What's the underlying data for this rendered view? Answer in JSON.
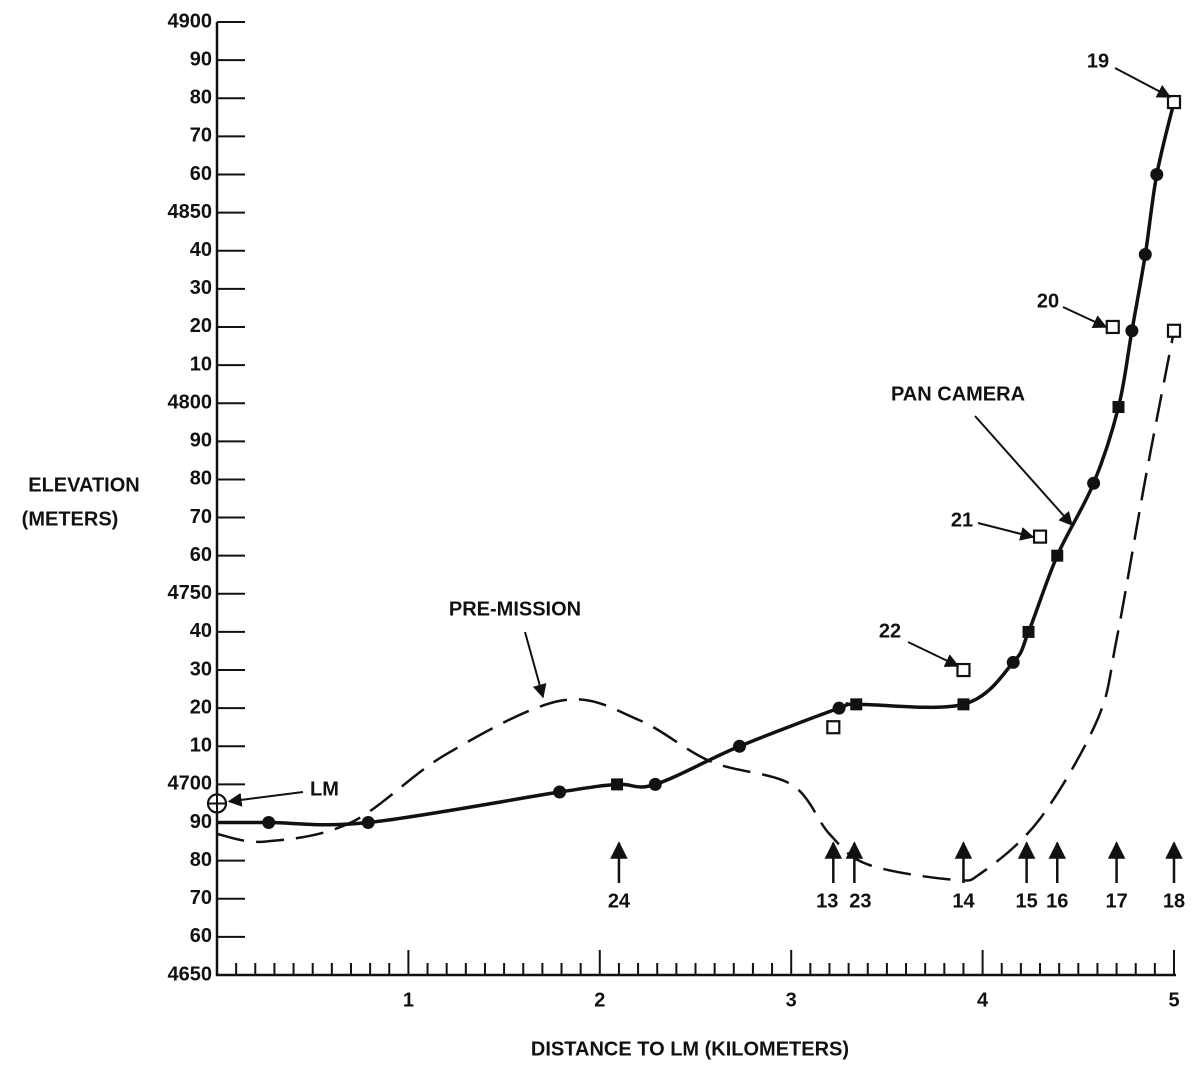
{
  "chart_data": {
    "type": "line",
    "xlabel": "DISTANCE TO LM (KILOMETERS)",
    "ylabel": [
      "ELEVATION",
      "(METERS)"
    ],
    "xlim": [
      0,
      5
    ],
    "ylim": [
      4650,
      4900
    ],
    "xticks": [
      1,
      2,
      3,
      4,
      5
    ],
    "xminorticks": [
      0.1,
      0.2,
      0.3,
      0.4,
      0.5,
      0.6,
      0.7,
      0.8,
      0.9,
      1.1,
      1.2,
      1.3,
      1.4,
      1.5,
      1.6,
      1.7,
      1.8,
      1.9,
      2.1,
      2.2,
      2.3,
      2.4,
      2.5,
      2.6,
      2.7,
      2.8,
      2.9,
      3.1,
      3.2,
      3.3,
      3.4,
      3.5,
      3.6,
      3.7,
      3.8,
      3.9,
      4.1,
      4.2,
      4.3,
      4.4,
      4.5,
      4.6,
      4.7,
      4.8,
      4.9
    ],
    "yticks": [
      4650,
      {
        "value": 4660,
        "label": "60"
      },
      {
        "value": 4670,
        "label": "70"
      },
      {
        "value": 4680,
        "label": "80"
      },
      {
        "value": 4690,
        "label": "90"
      },
      4700,
      {
        "value": 4710,
        "label": "10"
      },
      {
        "value": 4720,
        "label": "20"
      },
      {
        "value": 4730,
        "label": "30"
      },
      {
        "value": 4740,
        "label": "40"
      },
      4750,
      {
        "value": 4760,
        "label": "60"
      },
      {
        "value": 4770,
        "label": "70"
      },
      {
        "value": 4780,
        "label": "80"
      },
      {
        "value": 4790,
        "label": "90"
      },
      4800,
      {
        "value": 4810,
        "label": "10"
      },
      {
        "value": 4820,
        "label": "20"
      },
      {
        "value": 4830,
        "label": "30"
      },
      {
        "value": 4840,
        "label": "40"
      },
      4850,
      {
        "value": 4860,
        "label": "60"
      },
      {
        "value": 4870,
        "label": "70"
      },
      {
        "value": 4880,
        "label": "80"
      },
      {
        "value": 4890,
        "label": "90"
      },
      4900
    ],
    "series": [
      {
        "color": "#111111",
        "dash": false,
        "x": [
          0,
          0.27,
          0.79,
          1.79,
          2.09,
          2.29,
          2.73,
          3.25,
          3.34,
          3.9,
          4.16,
          4.24,
          4.39,
          4.58,
          4.71,
          4.78,
          4.85,
          4.91,
          5.0
        ],
        "values": [
          4690,
          4690,
          4690,
          4698,
          4700,
          4700,
          4710,
          4720,
          4721,
          4721,
          4732,
          4740,
          4760,
          4779,
          4799,
          4819,
          4839,
          4860,
          4879
        ],
        "markers": [
          null,
          "circle",
          "circle",
          "circle",
          "square",
          "circle",
          "circle",
          "circle",
          "square",
          "square",
          "circle",
          "square",
          "square",
          "circle",
          "square",
          "circle",
          "circle",
          "circle",
          "square"
        ]
      },
      {
        "color": "#111111",
        "dash": true,
        "x": [
          0,
          0.25,
          0.7,
          1.2,
          1.8,
          2.2,
          2.58,
          3.0,
          3.2,
          3.4,
          3.85,
          4.0,
          4.3,
          4.6,
          4.7,
          4.85,
          5.0
        ],
        "values": [
          4687,
          4685,
          4690,
          4708,
          4722,
          4717,
          4706,
          4700,
          4687,
          4679,
          4675,
          4677,
          4691,
          4717,
          4738,
          4780,
          4819
        ]
      }
    ],
    "open_points": {
      "x": [
        3.22,
        3.9,
        4.3,
        4.68,
        5.0,
        5.0
      ],
      "values": [
        4715,
        4730,
        4765,
        4820,
        4819,
        4879
      ]
    },
    "lm": {
      "label": "LM",
      "x": 0,
      "value": 4695
    },
    "annotations": [
      "PRE-MISSION",
      "PAN CAMERA",
      "22",
      "21",
      "20",
      "19"
    ],
    "stations": [
      {
        "label": "24",
        "x": 2.1
      },
      {
        "label": "13",
        "x": 3.22
      },
      {
        "label": "23",
        "x": 3.33
      },
      {
        "label": "14",
        "x": 3.9
      },
      {
        "label": "15",
        "x": 4.23
      },
      {
        "label": "16",
        "x": 4.39
      },
      {
        "label": "17",
        "x": 4.7
      },
      {
        "label": "18",
        "x": 5.0
      }
    ]
  }
}
